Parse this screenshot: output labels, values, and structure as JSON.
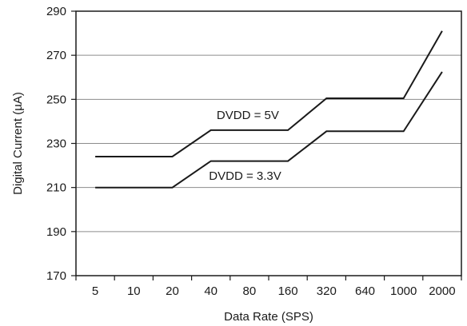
{
  "chart_data": {
    "type": "line",
    "title": "",
    "xlabel": "Data Rate (SPS)",
    "ylabel": "Digital Current (µA)",
    "categories": [
      "5",
      "10",
      "20",
      "40",
      "80",
      "160",
      "320",
      "640",
      "1000",
      "2000"
    ],
    "ylim": [
      170,
      290
    ],
    "yticks": [
      170,
      190,
      210,
      230,
      250,
      270,
      290
    ],
    "grid": "horizontal",
    "legend": "none",
    "series": [
      {
        "name": "DVDD = 5V",
        "color": "#1a1a1a",
        "points": [
          {
            "x": "5",
            "y": 224
          },
          {
            "x": "20",
            "y": 224
          },
          {
            "x": "40",
            "y": 236
          },
          {
            "x": "160",
            "y": 236
          },
          {
            "x": "320",
            "y": 250.5
          },
          {
            "x": "1000",
            "y": 250.5
          },
          {
            "x": "2000",
            "y": 281
          }
        ]
      },
      {
        "name": "DVDD = 3.3V",
        "color": "#1a1a1a",
        "points": [
          {
            "x": "5",
            "y": 210
          },
          {
            "x": "20",
            "y": 210
          },
          {
            "x": "40",
            "y": 222
          },
          {
            "x": "160",
            "y": 222
          },
          {
            "x": "320",
            "y": 235.5
          },
          {
            "x": "1000",
            "y": 235.5
          },
          {
            "x": "2000",
            "y": 262.5
          }
        ]
      }
    ]
  }
}
